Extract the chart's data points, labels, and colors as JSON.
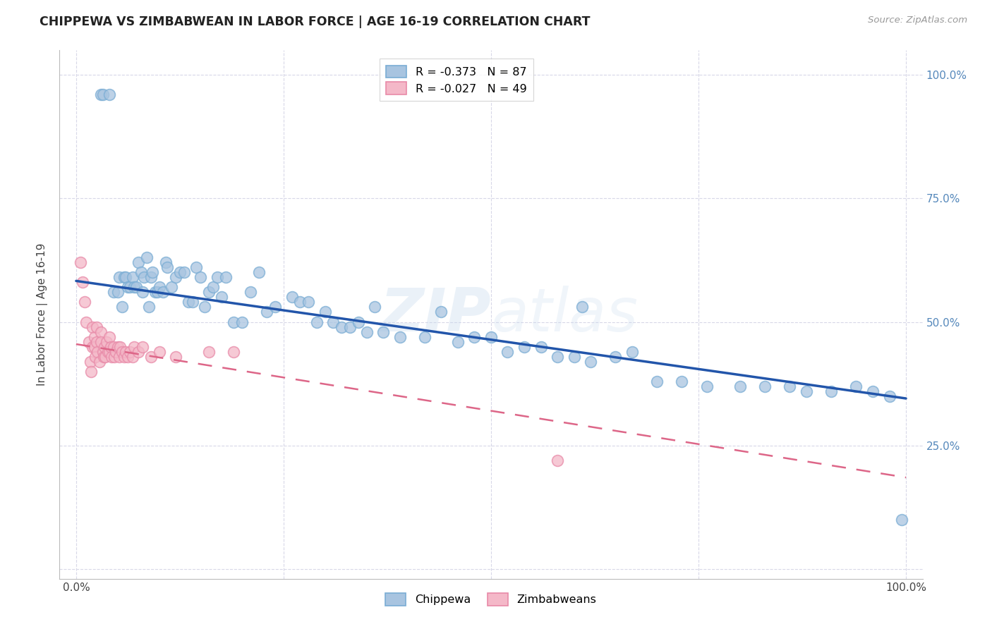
{
  "title": "CHIPPEWA VS ZIMBABWEAN IN LABOR FORCE | AGE 16-19 CORRELATION CHART",
  "source": "Source: ZipAtlas.com",
  "ylabel": "In Labor Force | Age 16-19",
  "xlim": [
    -0.02,
    1.02
  ],
  "ylim": [
    -0.02,
    1.05
  ],
  "legend_label1": "R = -0.373   N = 87",
  "legend_label2": "R = -0.027   N = 49",
  "chippewa_color": "#a8c4e0",
  "chippewa_edge": "#7aadd4",
  "zimbabwean_color": "#f4b8c8",
  "zimbabwean_edge": "#e88aa8",
  "trend_color_chippewa": "#2255aa",
  "trend_color_zimbabwean": "#dd6688",
  "watermark_color": "#c8d8e8",
  "background_color": "#ffffff",
  "grid_color": "#d8d8e8",
  "title_color": "#222222",
  "right_tick_color": "#5588bb",
  "chippewa_x": [
    0.03,
    0.032,
    0.04,
    0.045,
    0.05,
    0.052,
    0.055,
    0.058,
    0.06,
    0.062,
    0.065,
    0.068,
    0.07,
    0.072,
    0.075,
    0.078,
    0.08,
    0.082,
    0.085,
    0.088,
    0.09,
    0.092,
    0.095,
    0.098,
    0.1,
    0.105,
    0.108,
    0.11,
    0.115,
    0.12,
    0.125,
    0.13,
    0.135,
    0.14,
    0.145,
    0.15,
    0.155,
    0.16,
    0.165,
    0.17,
    0.175,
    0.18,
    0.19,
    0.2,
    0.21,
    0.22,
    0.23,
    0.24,
    0.26,
    0.27,
    0.28,
    0.29,
    0.3,
    0.31,
    0.32,
    0.33,
    0.34,
    0.35,
    0.36,
    0.37,
    0.39,
    0.42,
    0.44,
    0.46,
    0.48,
    0.5,
    0.52,
    0.54,
    0.56,
    0.58,
    0.6,
    0.61,
    0.62,
    0.65,
    0.67,
    0.7,
    0.73,
    0.76,
    0.8,
    0.83,
    0.86,
    0.88,
    0.91,
    0.94,
    0.96,
    0.98,
    0.995
  ],
  "chippewa_y": [
    0.96,
    0.96,
    0.96,
    0.56,
    0.56,
    0.59,
    0.53,
    0.59,
    0.59,
    0.57,
    0.57,
    0.59,
    0.57,
    0.57,
    0.62,
    0.6,
    0.56,
    0.59,
    0.63,
    0.53,
    0.59,
    0.6,
    0.56,
    0.56,
    0.57,
    0.56,
    0.62,
    0.61,
    0.57,
    0.59,
    0.6,
    0.6,
    0.54,
    0.54,
    0.61,
    0.59,
    0.53,
    0.56,
    0.57,
    0.59,
    0.55,
    0.59,
    0.5,
    0.5,
    0.56,
    0.6,
    0.52,
    0.53,
    0.55,
    0.54,
    0.54,
    0.5,
    0.52,
    0.5,
    0.49,
    0.49,
    0.5,
    0.48,
    0.53,
    0.48,
    0.47,
    0.47,
    0.52,
    0.46,
    0.47,
    0.47,
    0.44,
    0.45,
    0.45,
    0.43,
    0.43,
    0.53,
    0.42,
    0.43,
    0.44,
    0.38,
    0.38,
    0.37,
    0.37,
    0.37,
    0.37,
    0.36,
    0.36,
    0.37,
    0.36,
    0.35,
    0.1
  ],
  "zimbabwean_x": [
    0.005,
    0.008,
    0.01,
    0.012,
    0.015,
    0.017,
    0.018,
    0.02,
    0.02,
    0.022,
    0.022,
    0.023,
    0.025,
    0.025,
    0.026,
    0.028,
    0.03,
    0.03,
    0.032,
    0.033,
    0.034,
    0.035,
    0.037,
    0.038,
    0.04,
    0.04,
    0.042,
    0.043,
    0.045,
    0.046,
    0.048,
    0.05,
    0.052,
    0.053,
    0.055,
    0.058,
    0.06,
    0.062,
    0.065,
    0.068,
    0.07,
    0.075,
    0.08,
    0.09,
    0.1,
    0.12,
    0.16,
    0.19,
    0.58
  ],
  "zimbabwean_y": [
    0.62,
    0.58,
    0.54,
    0.5,
    0.46,
    0.42,
    0.4,
    0.49,
    0.45,
    0.47,
    0.45,
    0.43,
    0.49,
    0.46,
    0.44,
    0.42,
    0.48,
    0.46,
    0.44,
    0.43,
    0.45,
    0.43,
    0.46,
    0.44,
    0.47,
    0.44,
    0.45,
    0.43,
    0.45,
    0.43,
    0.44,
    0.45,
    0.43,
    0.45,
    0.44,
    0.43,
    0.44,
    0.43,
    0.44,
    0.43,
    0.45,
    0.44,
    0.45,
    0.43,
    0.44,
    0.43,
    0.44,
    0.44,
    0.22
  ],
  "R_chippewa": -0.373,
  "N_chippewa": 87,
  "R_zimbabwean": -0.027,
  "N_zimbabwean": 49
}
